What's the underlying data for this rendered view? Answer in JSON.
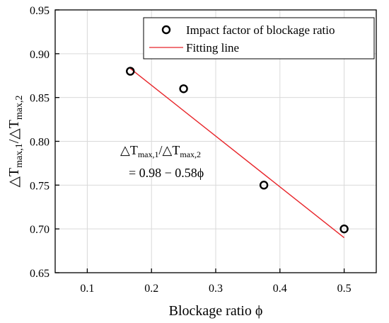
{
  "chart_data": {
    "type": "scatter",
    "title": "",
    "xlabel": "Blockage ratio ϕ",
    "ylabel": {
      "part1": "△T",
      "sub1": "max,1",
      "part2": "/△T",
      "sub2": "max,2"
    },
    "xlim": [
      0.05,
      0.55
    ],
    "ylim": [
      0.65,
      0.95
    ],
    "xticks": [
      "0.1",
      "0.2",
      "0.3",
      "0.4",
      "0.5"
    ],
    "yticks": [
      "0.65",
      "0.70",
      "0.75",
      "0.80",
      "0.85",
      "0.90",
      "0.95"
    ],
    "grid": true,
    "legend_position": "top-right",
    "series": [
      {
        "name": "Impact factor of blockage ratio",
        "type": "scatter",
        "marker": "open-circle",
        "color": "#000000",
        "x": [
          0.167,
          0.25,
          0.375,
          0.5
        ],
        "y": [
          0.88,
          0.86,
          0.75,
          0.7
        ]
      },
      {
        "name": "Fitting line",
        "type": "line",
        "color": "#e8252a",
        "x": [
          0.167,
          0.5
        ],
        "y": [
          0.8831,
          0.69
        ]
      }
    ],
    "annotation": {
      "line1": {
        "part1": "△T",
        "sub1": "max,1",
        "part2": "/△T",
        "sub2": "max,2"
      },
      "line2": "= 0.98 − 0.58ϕ"
    }
  }
}
